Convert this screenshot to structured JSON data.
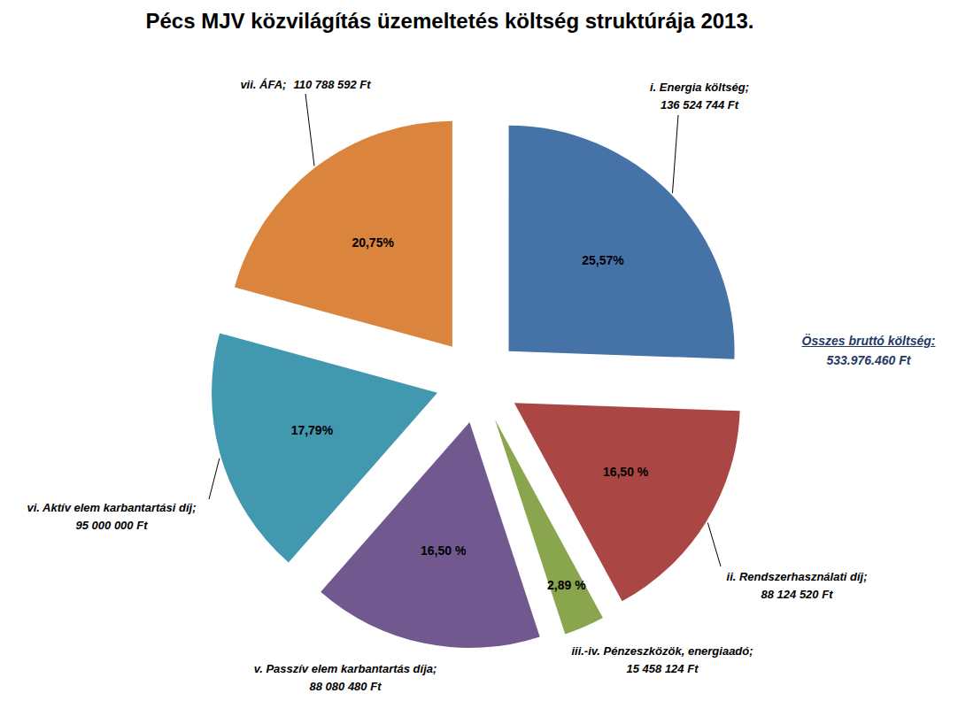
{
  "chart_data": {
    "type": "pie",
    "title": "Pécs MJV közvilágítás üzemeltetés költség struktúrája 2013.",
    "categories": [
      "i. Energia költség;",
      "ii. Rendszerhasználati díj;",
      "iii.-iv. Pénzeszközök, energiaadó;",
      "v. Passzív elem karbantartás díja;",
      "vi. Aktív elem karbantartási díj;",
      "vii. ÁFA;"
    ],
    "values": [
      136524744,
      88124520,
      15458124,
      88080480,
      95000000,
      110788592
    ],
    "value_labels": [
      "136 524 744 Ft",
      "88 124 520 Ft",
      "15 458 124 Ft",
      "88 080 480 Ft",
      "95 000 000 Ft",
      "110 788 592 Ft"
    ],
    "percentages": [
      25.57,
      16.5,
      2.89,
      16.5,
      17.79,
      20.75
    ],
    "percentage_labels": [
      "25,57%",
      "16,50 %",
      "2,89 %",
      "16,50 %",
      "17,79%",
      "20,75%"
    ],
    "colors": [
      "#4572A7",
      "#AA4643",
      "#89A54E",
      "#71588F",
      "#4198AF",
      "#DB843D"
    ],
    "annotation": [
      "Összes bruttó költség:",
      "533.976.460 Ft"
    ],
    "data_labels": true
  }
}
